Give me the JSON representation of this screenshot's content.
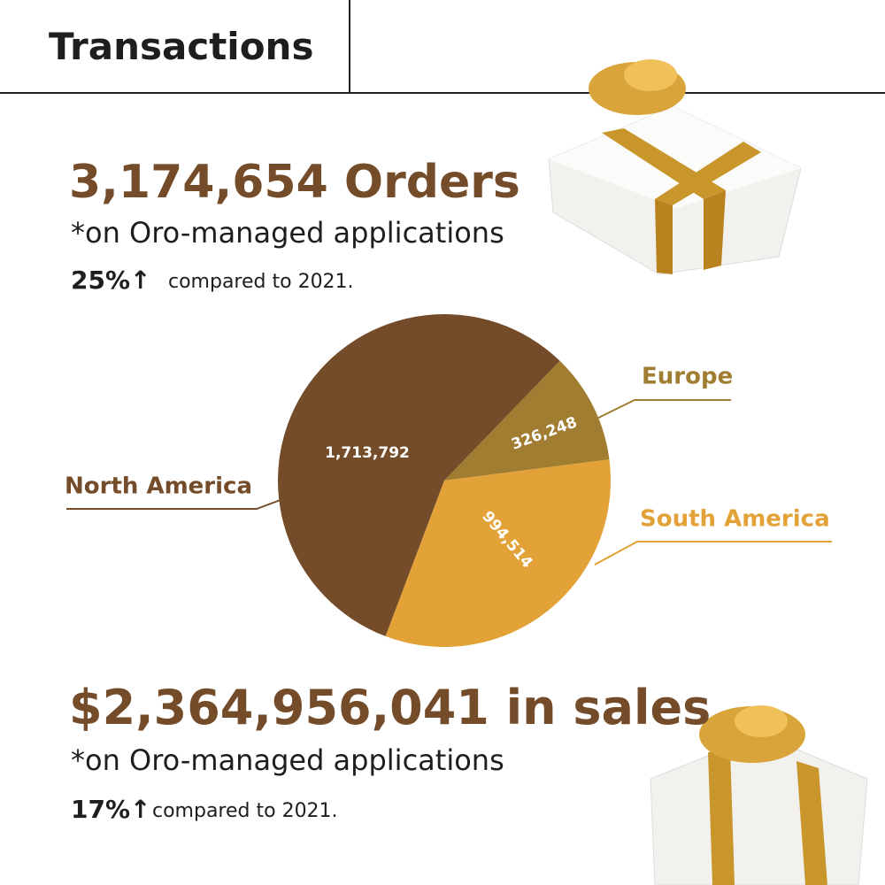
{
  "header": {
    "title": "Transactions"
  },
  "orders": {
    "headline": "3,174,654 Orders",
    "note": "*on Oro-managed applications",
    "change": "25%↑",
    "comparison": "compared to 2021."
  },
  "chart_data": {
    "type": "pie",
    "categories": [
      "Europe",
      "South America",
      "North America"
    ],
    "values": [
      326248,
      994514,
      1713792
    ],
    "value_labels": [
      "326,248",
      "994,514",
      "1,713,792"
    ],
    "colors": [
      "#a07d30",
      "#e2a237",
      "#754c29"
    ]
  },
  "sales": {
    "headline": "$2,364,956,041 in sales",
    "note": "*on Oro-managed applications",
    "change": "17%↑",
    "comparison": "compared to 2021."
  }
}
